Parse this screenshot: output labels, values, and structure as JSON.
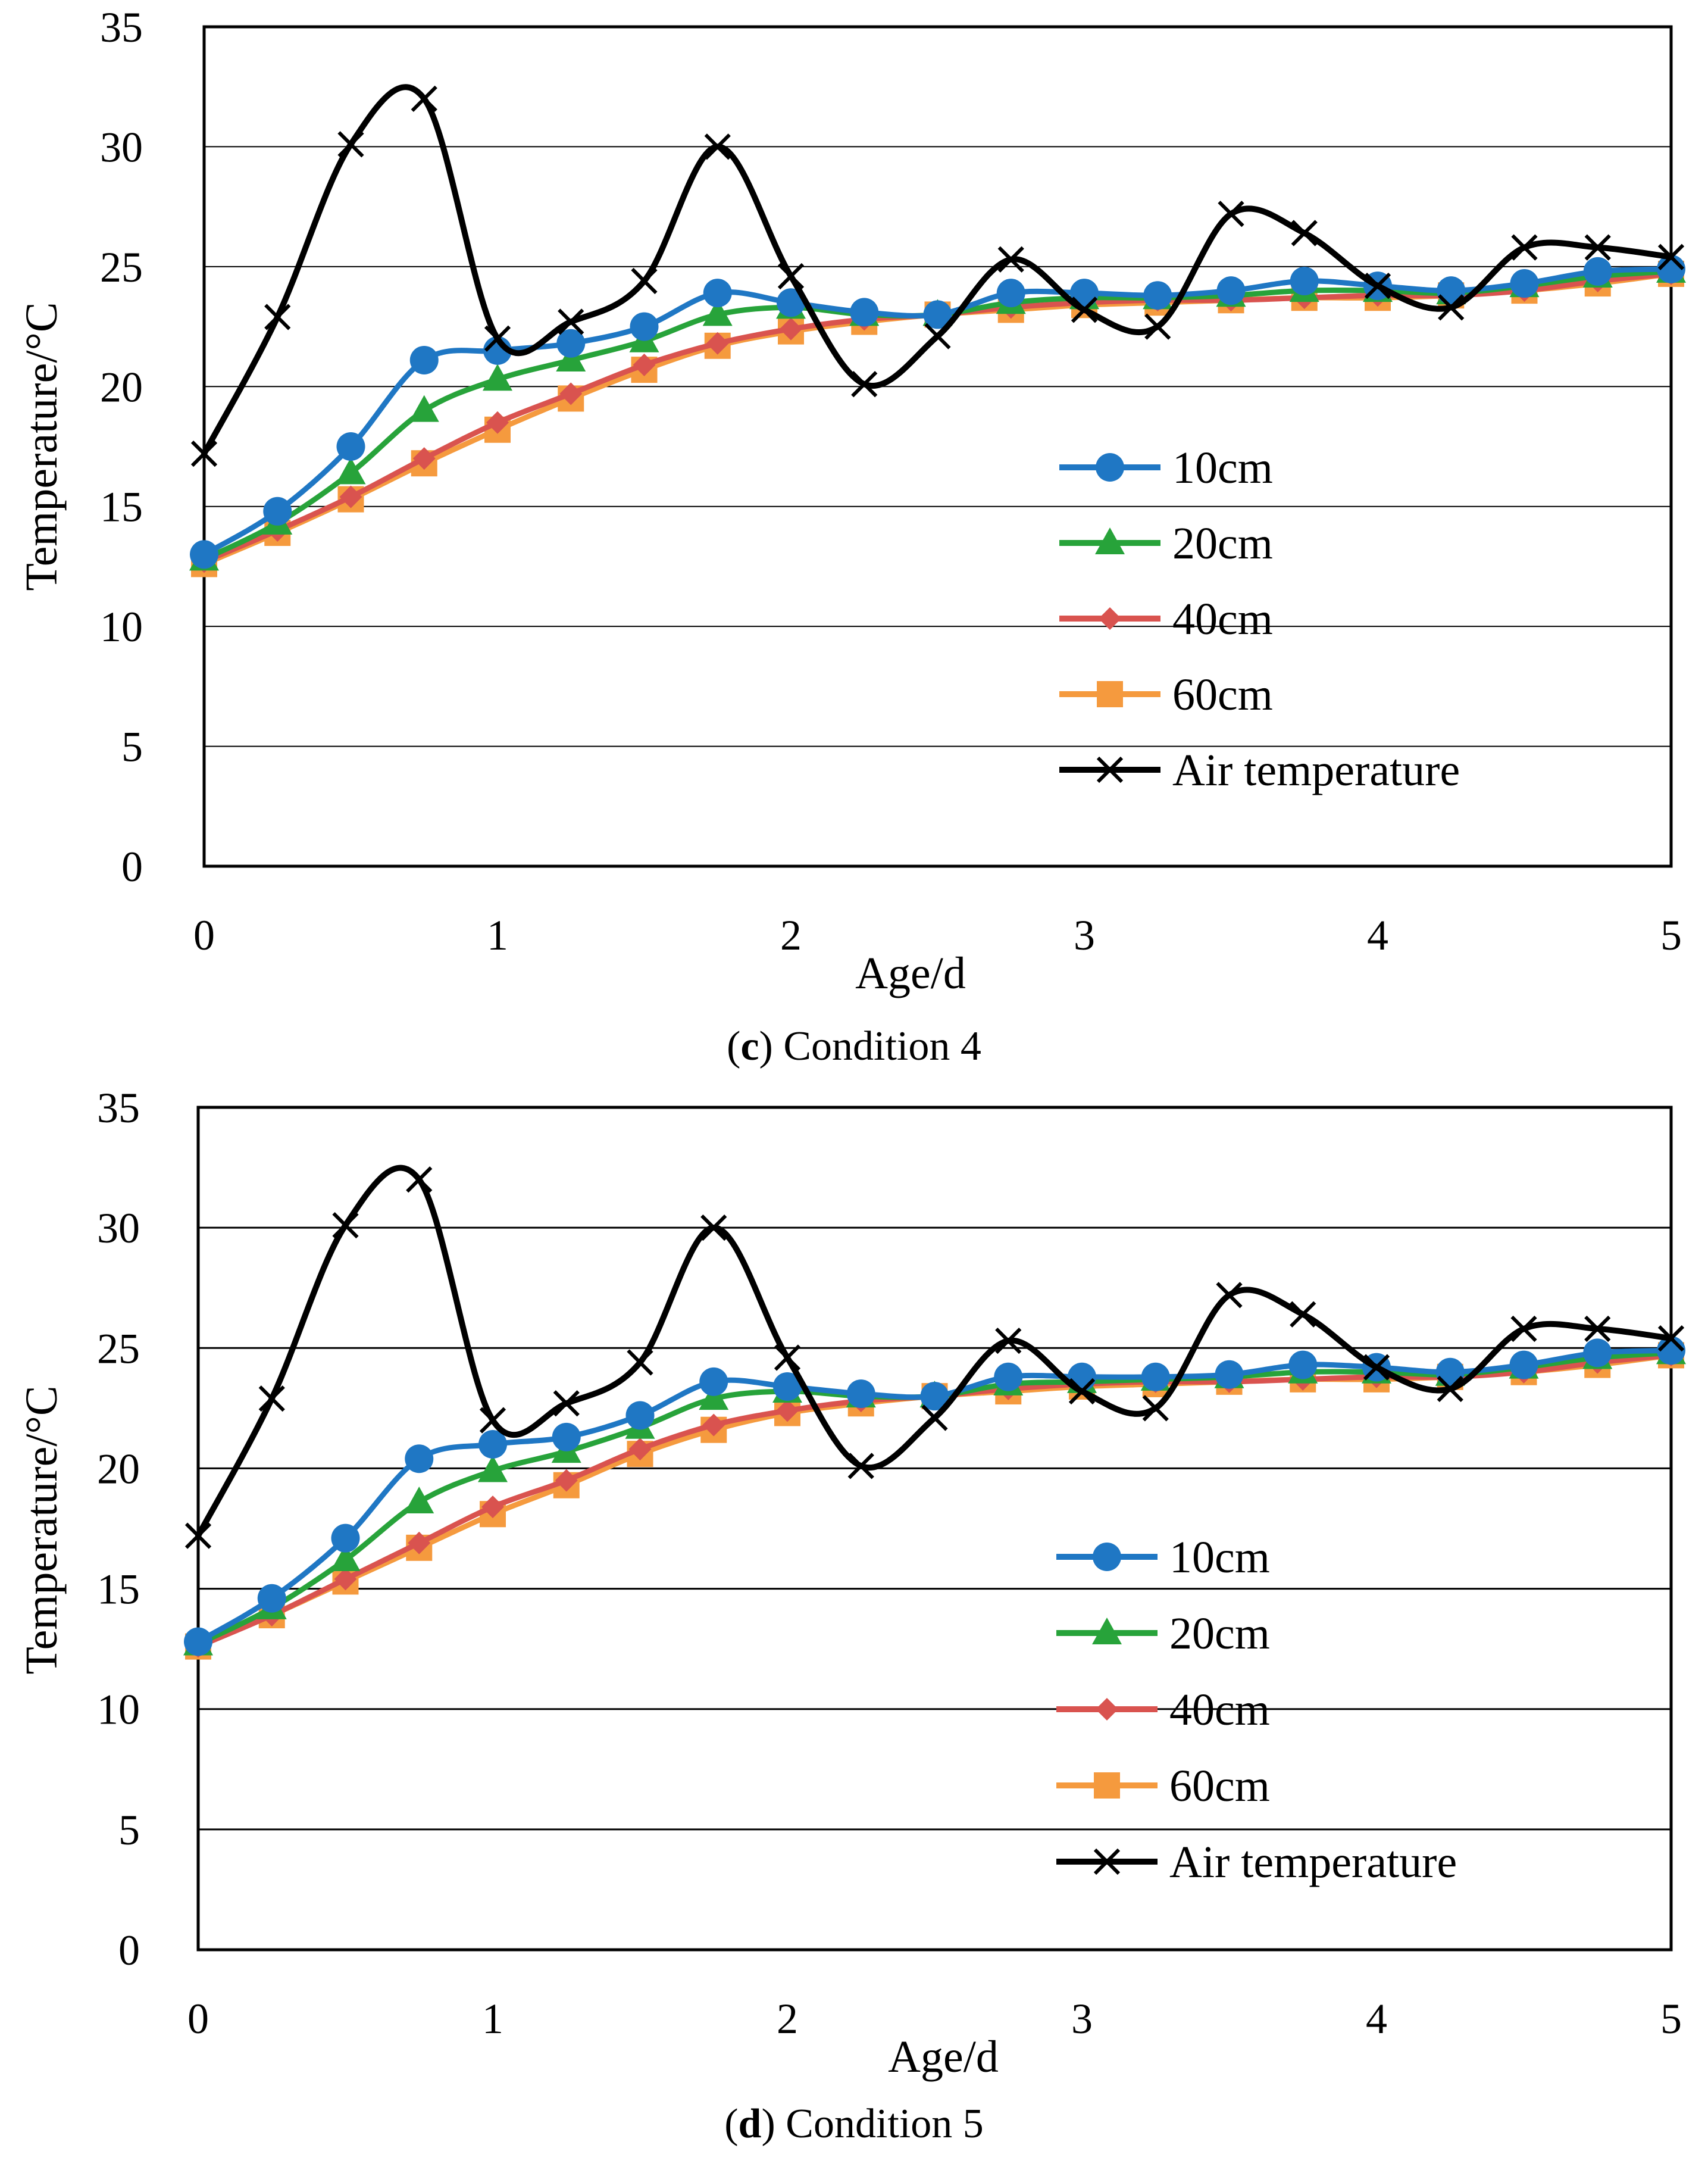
{
  "charts": [
    {
      "caption_letter": "c",
      "caption_text": " Condition 4",
      "chart_data": {
        "type": "line",
        "title": "(c) Condition 4",
        "xlabel": "Age/d",
        "ylabel": "Temperature/°C",
        "xlim": [
          0,
          5
        ],
        "ylim": [
          0,
          35
        ],
        "xticks": [
          "0",
          "1",
          "2",
          "3",
          "4",
          "5"
        ],
        "yticks": [
          "0",
          "5",
          "10",
          "15",
          "20",
          "25",
          "30",
          "35"
        ],
        "grid": "horizontal",
        "legend_position": "right-middle",
        "x": [
          0,
          0.25,
          0.5,
          0.75,
          1,
          1.25,
          1.5,
          1.75,
          2,
          2.25,
          2.5,
          2.75,
          3,
          3.25,
          3.5,
          3.75,
          4,
          4.25,
          4.5,
          4.75,
          5
        ],
        "series": [
          {
            "name": "10cm",
            "color": "#1f77c4",
            "marker": "circle",
            "values": [
              13.0,
              14.8,
              17.5,
              21.1,
              21.5,
              21.8,
              22.5,
              23.9,
              23.5,
              23.1,
              23.0,
              23.9,
              23.9,
              23.8,
              24.0,
              24.4,
              24.2,
              24.0,
              24.3,
              24.8,
              24.9
            ]
          },
          {
            "name": "20cm",
            "color": "#27a33a",
            "marker": "triangle",
            "values": [
              12.8,
              14.3,
              16.4,
              19.0,
              20.3,
              21.1,
              21.9,
              23.0,
              23.3,
              23.0,
              23.0,
              23.5,
              23.7,
              23.7,
              23.8,
              24.0,
              24.0,
              23.9,
              24.2,
              24.6,
              24.8
            ]
          },
          {
            "name": "40cm",
            "color": "#d9534f",
            "marker": "diamond",
            "values": [
              12.7,
              14.0,
              15.4,
              17.0,
              18.5,
              19.7,
              20.9,
              21.8,
              22.4,
              22.8,
              23.0,
              23.3,
              23.5,
              23.6,
              23.6,
              23.7,
              23.8,
              23.8,
              24.0,
              24.4,
              24.7
            ]
          },
          {
            "name": "60cm",
            "color": "#f59a3e",
            "marker": "square",
            "values": [
              12.6,
              13.9,
              15.3,
              16.8,
              18.2,
              19.5,
              20.7,
              21.7,
              22.3,
              22.7,
              23.0,
              23.2,
              23.4,
              23.5,
              23.6,
              23.7,
              23.7,
              23.8,
              24.0,
              24.3,
              24.7
            ]
          },
          {
            "name": "Air temperature",
            "color": "#000000",
            "marker": "x",
            "values": [
              17.2,
              22.9,
              30.1,
              32.0,
              22.0,
              22.7,
              24.4,
              30.0,
              24.6,
              20.1,
              22.1,
              25.3,
              23.2,
              22.5,
              27.2,
              26.4,
              24.2,
              23.3,
              25.8,
              25.8,
              25.4
            ]
          }
        ]
      }
    },
    {
      "caption_letter": "d",
      "caption_text": " Condition 5",
      "chart_data": {
        "type": "line",
        "title": "(d) Condition 5",
        "xlabel": "Age/d",
        "ylabel": "Temperature/°C",
        "xlim": [
          0,
          5
        ],
        "ylim": [
          0,
          35
        ],
        "xticks": [
          "0",
          "1",
          "2",
          "3",
          "4",
          "5"
        ],
        "yticks": [
          "0",
          "5",
          "10",
          "15",
          "20",
          "25",
          "30",
          "35"
        ],
        "grid": "horizontal",
        "legend_position": "right-middle",
        "x": [
          0,
          0.25,
          0.5,
          0.75,
          1,
          1.25,
          1.5,
          1.75,
          2,
          2.25,
          2.5,
          2.75,
          3,
          3.25,
          3.5,
          3.75,
          4,
          4.25,
          4.5,
          4.75,
          5
        ],
        "series": [
          {
            "name": "10cm",
            "color": "#1f77c4",
            "marker": "circle",
            "values": [
              12.8,
              14.6,
              17.1,
              20.4,
              21.0,
              21.3,
              22.2,
              23.6,
              23.4,
              23.1,
              23.0,
              23.8,
              23.8,
              23.8,
              23.9,
              24.3,
              24.2,
              24.0,
              24.3,
              24.8,
              24.9
            ]
          },
          {
            "name": "20cm",
            "color": "#27a33a",
            "marker": "triangle",
            "values": [
              12.7,
              14.2,
              16.2,
              18.6,
              19.9,
              20.7,
              21.7,
              22.9,
              23.2,
              23.0,
              23.0,
              23.5,
              23.6,
              23.7,
              23.8,
              24.0,
              24.0,
              23.9,
              24.2,
              24.6,
              24.8
            ]
          },
          {
            "name": "40cm",
            "color": "#d9534f",
            "marker": "diamond",
            "values": [
              12.6,
              13.9,
              15.4,
              16.9,
              18.4,
              19.5,
              20.8,
              21.8,
              22.4,
              22.8,
              23.0,
              23.3,
              23.5,
              23.6,
              23.6,
              23.7,
              23.8,
              23.8,
              24.0,
              24.4,
              24.7
            ]
          },
          {
            "name": "60cm",
            "color": "#f59a3e",
            "marker": "square",
            "values": [
              12.6,
              13.9,
              15.3,
              16.7,
              18.1,
              19.3,
              20.6,
              21.6,
              22.3,
              22.7,
              23.0,
              23.2,
              23.4,
              23.5,
              23.6,
              23.7,
              23.7,
              23.8,
              24.0,
              24.3,
              24.7
            ]
          },
          {
            "name": "Air temperature",
            "color": "#000000",
            "marker": "x",
            "values": [
              17.2,
              22.9,
              30.1,
              32.0,
              22.0,
              22.7,
              24.4,
              30.0,
              24.6,
              20.1,
              22.1,
              25.3,
              23.2,
              22.5,
              27.2,
              26.4,
              24.2,
              23.3,
              25.8,
              25.8,
              25.4
            ]
          }
        ]
      }
    }
  ]
}
